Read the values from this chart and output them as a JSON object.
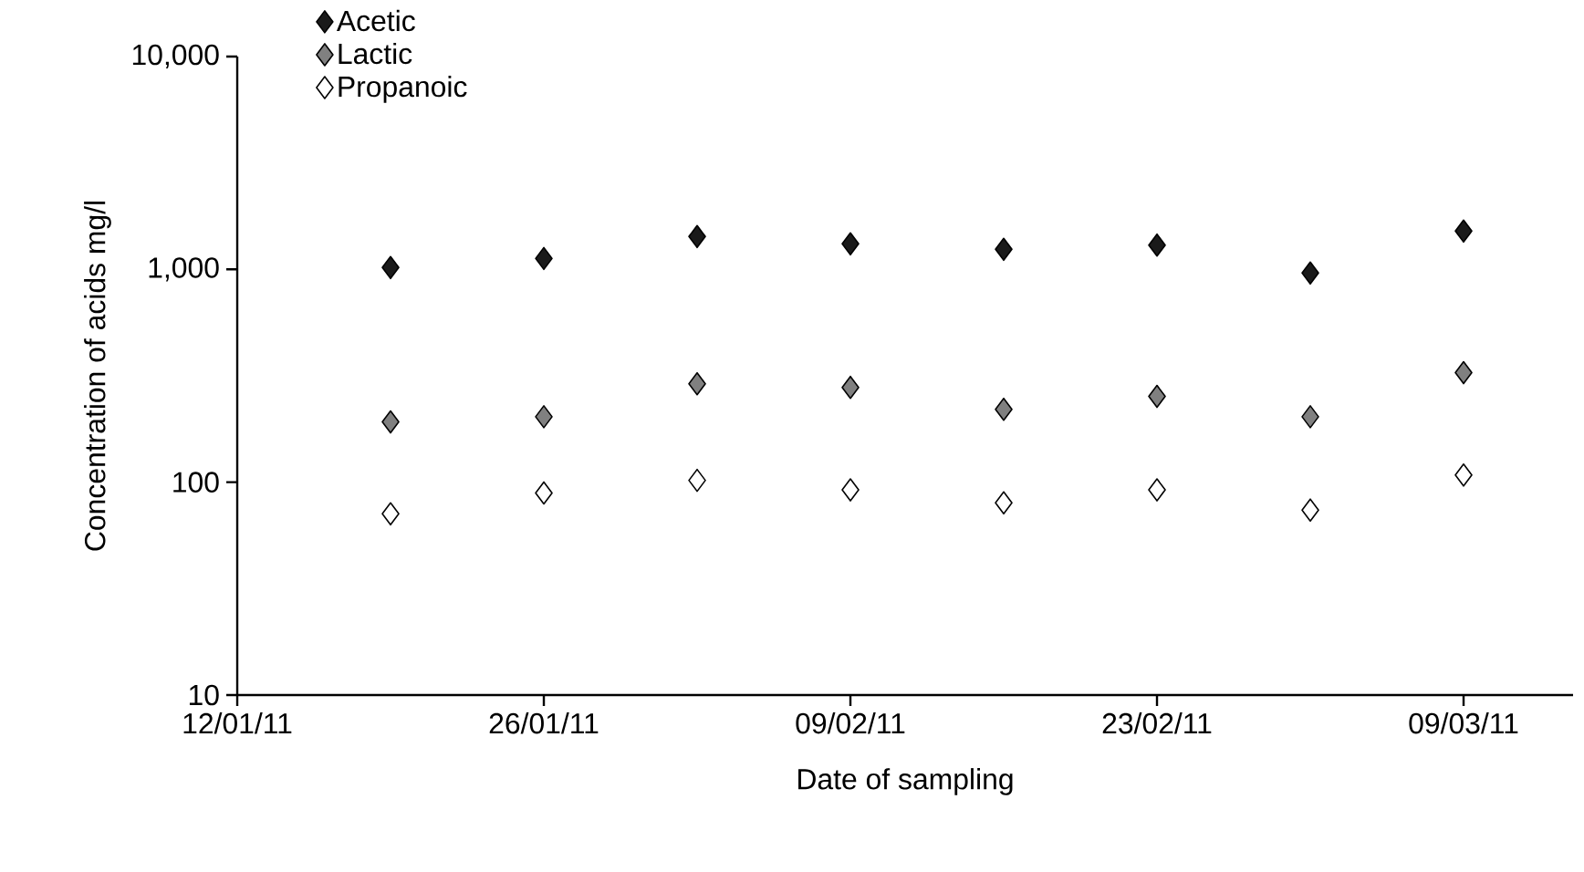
{
  "chart_data": {
    "type": "scatter",
    "xlabel": "Date of sampling",
    "ylabel": "Concentration of acids mg/l",
    "x": [
      "2011-01-19",
      "2011-01-26",
      "2011-02-02",
      "2011-02-09",
      "2011-02-16",
      "2011-02-23",
      "2011-03-02",
      "2011-03-09"
    ],
    "series": [
      {
        "name": "Acetic",
        "color": "#1a1a1a",
        "values": [
          1020,
          1125,
          1426,
          1318,
          1242,
          1300,
          961,
          1513
        ]
      },
      {
        "name": "Lactic",
        "color": "#808080",
        "values": [
          192,
          203,
          290,
          279,
          220,
          253,
          203,
          327
        ]
      },
      {
        "name": "Propanoic",
        "color": "#ffffff",
        "values": [
          71,
          89,
          102,
          92,
          80,
          92,
          74,
          108
        ]
      }
    ],
    "xlim": [
      "2011-01-12",
      "2011-03-14"
    ],
    "xticks": [
      {
        "value": "2011-01-12",
        "label": "12/01/11"
      },
      {
        "value": "2011-01-26",
        "label": "26/01/11"
      },
      {
        "value": "2011-02-09",
        "label": "09/02/11"
      },
      {
        "value": "2011-02-23",
        "label": "23/02/11"
      },
      {
        "value": "2011-03-09",
        "label": "09/03/11"
      }
    ],
    "ylim": [
      10,
      10000
    ],
    "yticks": [
      10,
      100,
      {
        "value": 1000,
        "label": "1,000"
      },
      {
        "value": 10000,
        "label": "10,000"
      }
    ],
    "log": true,
    "grid": false,
    "legend": "top left",
    "marker": "diamond"
  }
}
